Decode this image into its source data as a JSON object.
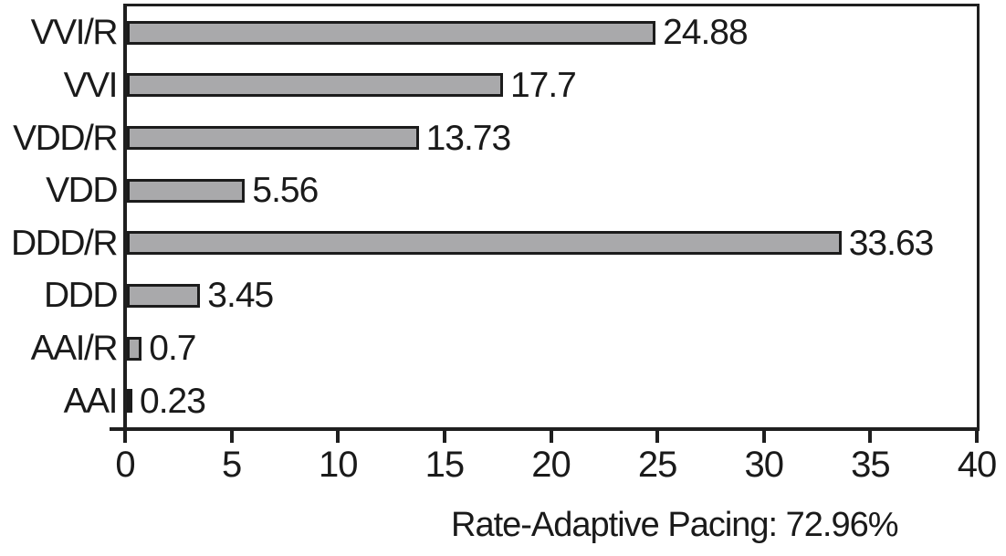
{
  "chart_data": {
    "type": "bar",
    "orientation": "horizontal",
    "title": "",
    "xlabel": "",
    "ylabel": "",
    "categories": [
      "VVI/R",
      "VVI",
      "VDD/R",
      "VDD",
      "DDD/R",
      "DDD",
      "AAI/R",
      "AAI"
    ],
    "values": [
      24.88,
      17.7,
      13.73,
      5.56,
      33.63,
      3.45,
      0.7,
      0.23
    ],
    "value_labels": [
      "24.88",
      "17.7",
      "13.73",
      "5.56",
      "33.63",
      "3.45",
      "0.7",
      "0.23"
    ],
    "xlim": [
      0,
      40
    ],
    "x_ticks": [
      0,
      5,
      10,
      15,
      20,
      25,
      30,
      35,
      40
    ],
    "x_tick_labels": [
      "0",
      "5",
      "10",
      "15",
      "20",
      "25",
      "30",
      "35",
      "40"
    ],
    "grid": "off",
    "legend": "none",
    "caption": "Rate-Adaptive Pacing: 72.96%",
    "colors": {
      "bar_fill": "#a9a9ab",
      "bar_border": "#1c1c1c",
      "axis": "#1f1f1f",
      "text": "#1a1a1a",
      "background": "#ffffff"
    }
  }
}
